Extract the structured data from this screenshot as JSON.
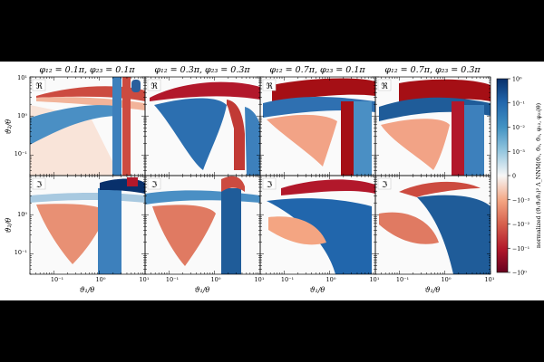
{
  "chart_data": {
    "type": "heatmap",
    "rows": [
      {
        "part_label": "ℜ",
        "row_label": "real"
      },
      {
        "part_label": "ℑ",
        "row_label": "imaginary"
      }
    ],
    "columns": [
      {
        "title": "φ₁₂ = 0.1π, φ₂₃ = 0.1π",
        "phi12_over_pi": 0.1,
        "phi23_over_pi": 0.1
      },
      {
        "title": "φ₁₂ = 0.3π, φ₂₃ = 0.3π",
        "phi12_over_pi": 0.3,
        "phi23_over_pi": 0.3
      },
      {
        "title": "φ₁₂ = 0.7π, φ₂₃ = 0.1π",
        "phi12_over_pi": 0.7,
        "phi23_over_pi": 0.1
      },
      {
        "title": "φ₁₂ = 0.7π, φ₂₃ = 0.3π",
        "phi12_over_pi": 0.7,
        "phi23_over_pi": 0.3
      }
    ],
    "xlabel": "ϑ₁/θ",
    "ylabel": "ϑ₂/θ",
    "x_log": true,
    "y_log": true,
    "xlim": [
      0.03,
      10
    ],
    "ylim": [
      0.03,
      10
    ],
    "x_ticks": [
      "10⁻¹",
      "10⁰",
      "10¹"
    ],
    "y_ticks": [
      "10⁻¹",
      "10⁰",
      "10¹"
    ],
    "colorbar": {
      "label": "normalized (ϑ₁ϑ₂ϑ₃)² Λ_NNM(ϑ₁, ϑ₂, ϑ₃, φ₁₂, φ₂₃|θ)",
      "scale": "symlog",
      "vmin": -1,
      "vmax": 1,
      "ticks": [
        "10⁰",
        "10⁻¹",
        "10⁻²",
        "10⁻³",
        "0",
        "−10⁻³",
        "−10⁻²",
        "−10⁻¹",
        "−10⁰"
      ],
      "colormap": "RdBu",
      "colors": {
        "positive": "#08306b",
        "zero": "#f7f7f7",
        "negative": "#a50f15"
      }
    },
    "grid": false
  }
}
